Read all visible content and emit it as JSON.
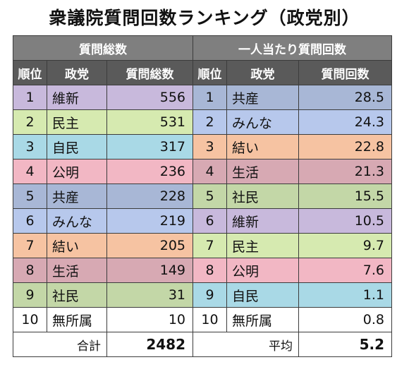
{
  "title": "衆議院質問回数ランキング（政党別）",
  "colors": {
    "維新": "#c8b9dc",
    "民主": "#d6eab0",
    "自民": "#a9d9e6",
    "公明": "#f2b7c4",
    "共産": "#a8b7d6",
    "みんな": "#b7c8ec",
    "結い": "#f6c3a2",
    "生活": "#d7a9b3",
    "社民": "#c3d7a7",
    "無所属": "#ffffff"
  },
  "chart_data": [
    {
      "type": "table",
      "group_header": "質問総数",
      "headers": [
        "順位",
        "政党",
        "質問総数"
      ],
      "rows": [
        {
          "rank": "1",
          "party": "維新",
          "value": "556"
        },
        {
          "rank": "2",
          "party": "民主",
          "value": "531"
        },
        {
          "rank": "3",
          "party": "自民",
          "value": "317"
        },
        {
          "rank": "4",
          "party": "公明",
          "value": "236"
        },
        {
          "rank": "5",
          "party": "共産",
          "value": "228"
        },
        {
          "rank": "6",
          "party": "みんな",
          "value": "219"
        },
        {
          "rank": "7",
          "party": "結い",
          "value": "205"
        },
        {
          "rank": "8",
          "party": "生活",
          "value": "149"
        },
        {
          "rank": "9",
          "party": "社民",
          "value": "31"
        },
        {
          "rank": "10",
          "party": "無所属",
          "value": "10"
        }
      ],
      "footer_label": "合計",
      "footer_value": "2482"
    },
    {
      "type": "table",
      "group_header": "一人当たり質問回数",
      "headers": [
        "順位",
        "政党",
        "質問回数"
      ],
      "rows": [
        {
          "rank": "1",
          "party": "共産",
          "value": "28.5"
        },
        {
          "rank": "2",
          "party": "みんな",
          "value": "24.3"
        },
        {
          "rank": "3",
          "party": "結い",
          "value": "22.8"
        },
        {
          "rank": "4",
          "party": "生活",
          "value": "21.3"
        },
        {
          "rank": "5",
          "party": "社民",
          "value": "15.5"
        },
        {
          "rank": "6",
          "party": "維新",
          "value": "10.5"
        },
        {
          "rank": "7",
          "party": "民主",
          "value": "9.7"
        },
        {
          "rank": "8",
          "party": "公明",
          "value": "7.6"
        },
        {
          "rank": "9",
          "party": "自民",
          "value": "1.1"
        },
        {
          "rank": "10",
          "party": "無所属",
          "value": "0.8"
        }
      ],
      "footer_label": "平均",
      "footer_value": "5.2"
    }
  ]
}
